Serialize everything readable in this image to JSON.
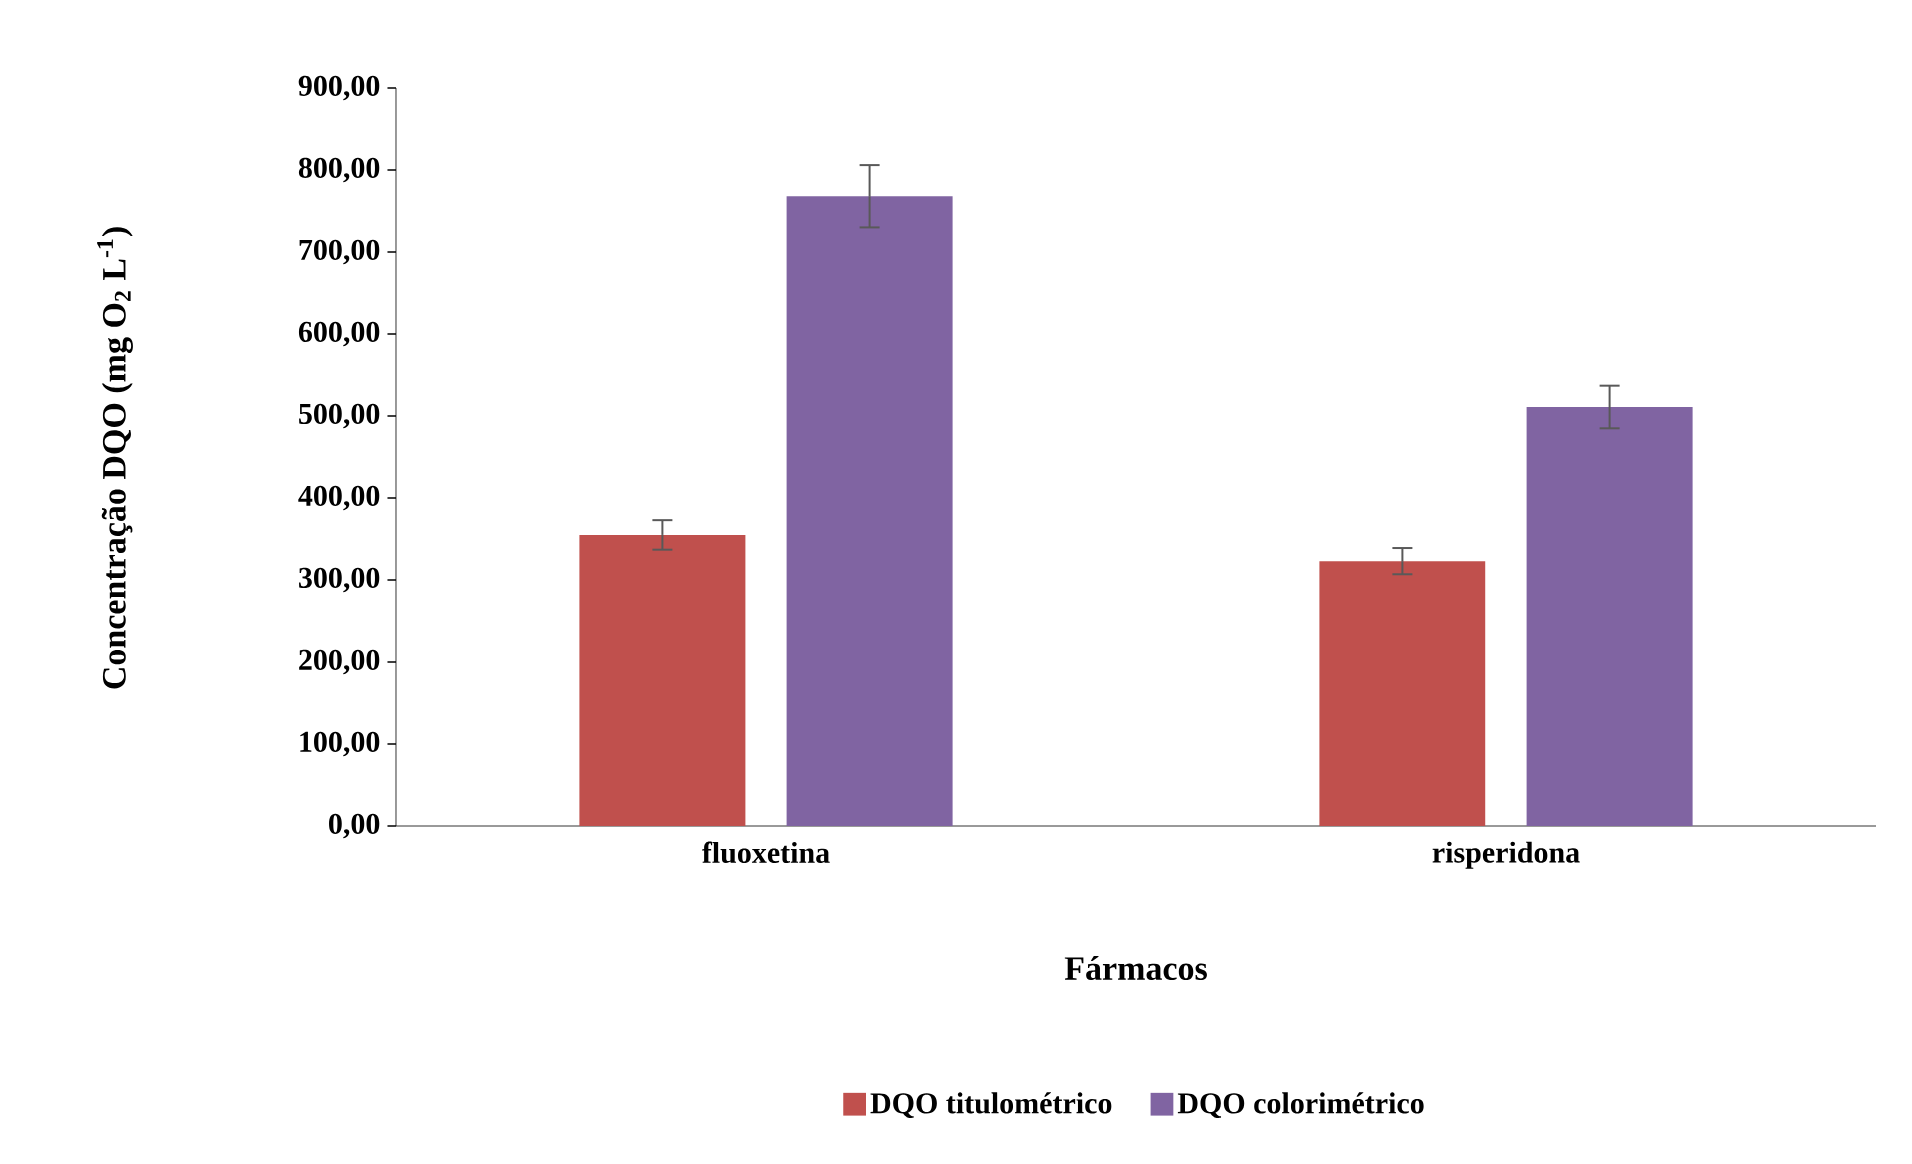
{
  "chart_data": {
    "type": "bar",
    "xlabel": "Fármacos",
    "ylabel": "Concentração DQO (mg  O$_{2}$ L$^{-1}$)",
    "categories": [
      "fluoxetina",
      "risperidona"
    ],
    "series": [
      {
        "name": "DQO titulométrico",
        "color": "#c0504d",
        "values": [
          355,
          323
        ],
        "errors": [
          18,
          16
        ]
      },
      {
        "name": "DQO colorimétrico",
        "color": "#8064a2",
        "values": [
          768,
          511
        ],
        "errors": [
          38,
          26
        ]
      }
    ],
    "ylim": [
      0,
      900
    ],
    "yticks": [
      {
        "value": 0,
        "label": "0,00"
      },
      {
        "value": 100,
        "label": "100,00"
      },
      {
        "value": 200,
        "label": "200,00"
      },
      {
        "value": 300,
        "label": "300,00"
      },
      {
        "value": 400,
        "label": "400,00"
      },
      {
        "value": 500,
        "label": "500,00"
      },
      {
        "value": 600,
        "label": "600,00"
      },
      {
        "value": 700,
        "label": "700,00"
      },
      {
        "value": 800,
        "label": "800,00"
      },
      {
        "value": 900,
        "label": "900,00"
      }
    ],
    "grid": false,
    "legend": "bottom"
  }
}
